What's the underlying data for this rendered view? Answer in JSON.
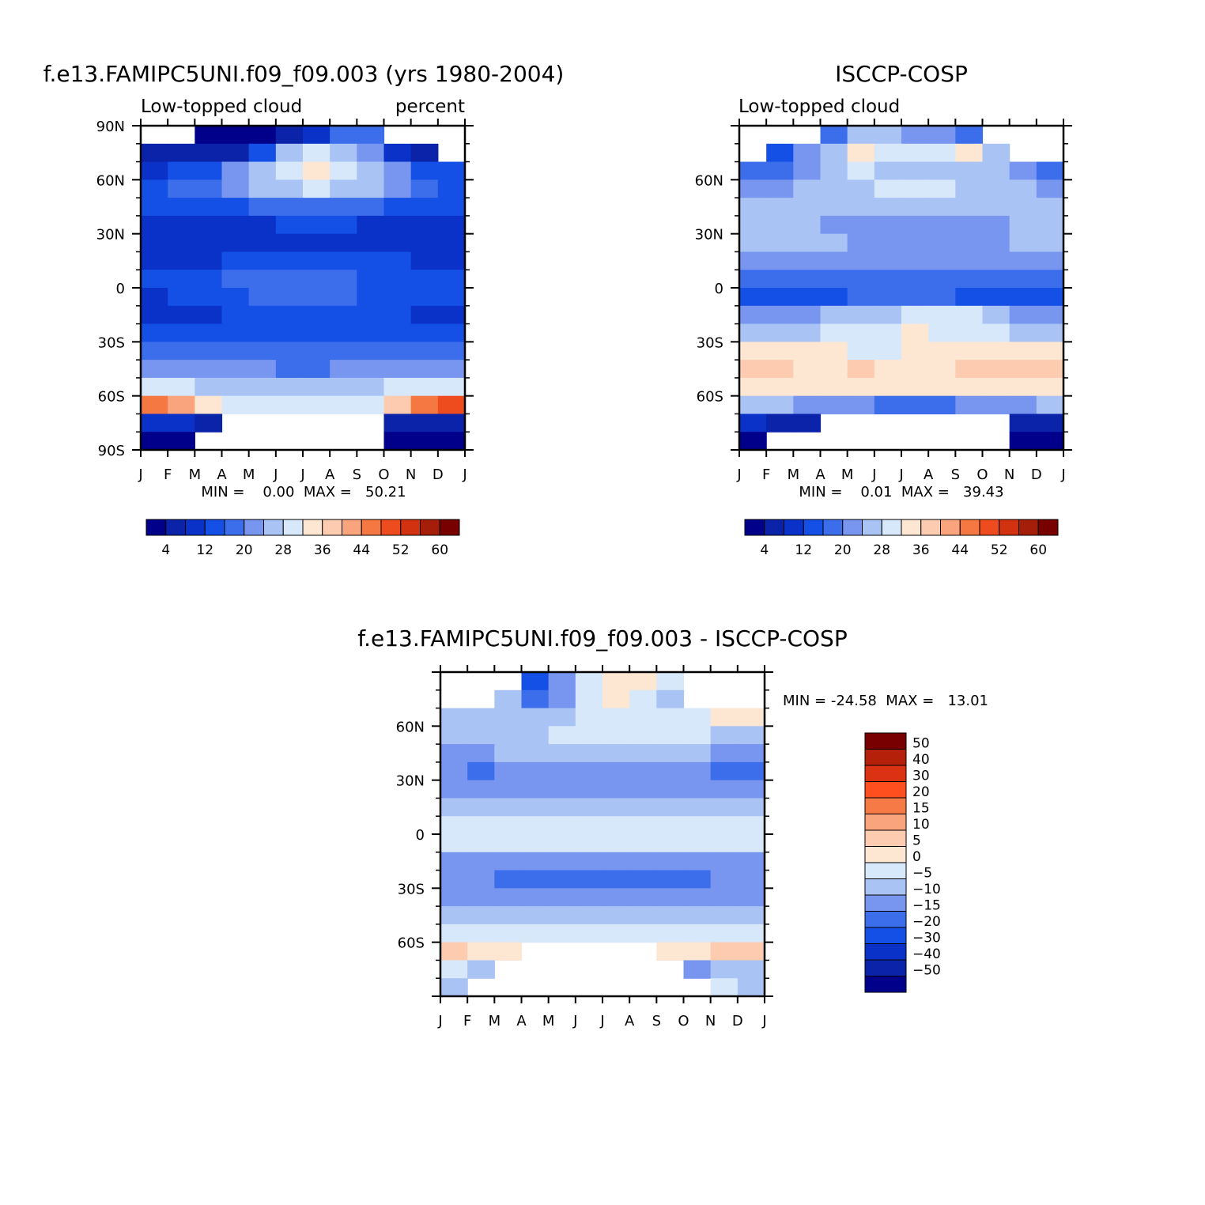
{
  "chart_data": [
    {
      "type": "heatmap",
      "title": "f.e13.FAMIPC5UNI.f09_f09.003 (yrs 1980-2004)",
      "left_label": "Low-topped cloud",
      "right_label": "percent",
      "x_ticks": [
        "J",
        "F",
        "M",
        "A",
        "M",
        "J",
        "J",
        "A",
        "S",
        "O",
        "N",
        "D",
        "J"
      ],
      "y_ticks": [
        "90N",
        "60N",
        "30N",
        "0",
        "30S",
        "60S",
        "90S"
      ],
      "ylim": [
        -90,
        90
      ],
      "min_max_text": "MIN =    0.00  MAX =   50.21",
      "colorbar_labels": [
        "4",
        "12",
        "20",
        "28",
        "36",
        "44",
        "52",
        "60"
      ],
      "colorbar_colors": [
        "#00008b",
        "#0a23a8",
        "#0a32c8",
        "#1450e6",
        "#3c6eeb",
        "#7896f0",
        "#aac3f5",
        "#d7e8fb",
        "#fde6d2",
        "#fccbb0",
        "#f9a47c",
        "#f57842",
        "#ee4c1e",
        "#d2320f",
        "#a51e0a",
        "#780000"
      ],
      "latitudes": [
        85,
        75,
        65,
        55,
        45,
        35,
        25,
        15,
        5,
        -5,
        -15,
        -25,
        -35,
        -45,
        -55,
        -65,
        -75,
        -85
      ],
      "months": [
        "J",
        "F",
        "M",
        "A",
        "M",
        "J",
        "J",
        "A",
        "S",
        "O",
        "N",
        "D"
      ],
      "z": [
        [
          null,
          null,
          1,
          1,
          3,
          5,
          9,
          19,
          16,
          null,
          null,
          null
        ],
        [
          7,
          7,
          4,
          7,
          13,
          24,
          28,
          26,
          23,
          9,
          5,
          null
        ],
        [
          10,
          12,
          15,
          20,
          24,
          31,
          32,
          30,
          27,
          22,
          14,
          12
        ],
        [
          14,
          16,
          18,
          21,
          24,
          27,
          28,
          27,
          24,
          22,
          18,
          15
        ],
        [
          13,
          13,
          14,
          15,
          16,
          17,
          18,
          17,
          16,
          15,
          14,
          13
        ],
        [
          10,
          10,
          11,
          11,
          11,
          12,
          12,
          12,
          11,
          11,
          11,
          10
        ],
        [
          10,
          10,
          10,
          10,
          9,
          10,
          10,
          9,
          10,
          10,
          10,
          10
        ],
        [
          11,
          11,
          11,
          12,
          13,
          13,
          12,
          12,
          12,
          12,
          11,
          11
        ],
        [
          12,
          13,
          14,
          16,
          17,
          17,
          17,
          16,
          15,
          14,
          13,
          12
        ],
        [
          11,
          12,
          13,
          15,
          17,
          17,
          17,
          17,
          15,
          14,
          13,
          12
        ],
        [
          10,
          10,
          11,
          13,
          14,
          14,
          14,
          13,
          12,
          12,
          11,
          10
        ],
        [
          14,
          14,
          14,
          13,
          13,
          13,
          13,
          13,
          13,
          14,
          14,
          14
        ],
        [
          19,
          19,
          18,
          17,
          17,
          16,
          16,
          17,
          17,
          18,
          19,
          19
        ],
        [
          23,
          23,
          22,
          21,
          20,
          19,
          19,
          20,
          21,
          22,
          23,
          23
        ],
        [
          30,
          29,
          27,
          25,
          24,
          24,
          24,
          25,
          26,
          28,
          30,
          31
        ],
        [
          46,
          41,
          33,
          29,
          28,
          28,
          28,
          29,
          30,
          36,
          44,
          48
        ],
        [
          10,
          8,
          6,
          null,
          null,
          null,
          null,
          null,
          null,
          4,
          5,
          7
        ],
        [
          3,
          2,
          null,
          null,
          null,
          null,
          null,
          null,
          null,
          1,
          1,
          1
        ]
      ]
    },
    {
      "type": "heatmap",
      "title": "ISCCP-COSP",
      "left_label": "Low-topped cloud",
      "x_ticks": [
        "J",
        "F",
        "M",
        "A",
        "M",
        "J",
        "J",
        "A",
        "S",
        "O",
        "N",
        "D",
        "J"
      ],
      "y_ticks": [
        "60N",
        "30N",
        "0",
        "30S",
        "60S"
      ],
      "ylim": [
        -90,
        90
      ],
      "min_max_text": "MIN =    0.01  MAX =   39.43",
      "colorbar_labels": [
        "4",
        "12",
        "20",
        "28",
        "36",
        "44",
        "52",
        "60"
      ],
      "colorbar_colors": [
        "#00008b",
        "#0a23a8",
        "#0a32c8",
        "#1450e6",
        "#3c6eeb",
        "#7896f0",
        "#aac3f5",
        "#d7e8fb",
        "#fde6d2",
        "#fccbb0",
        "#f9a47c",
        "#f57842",
        "#ee4c1e",
        "#d2320f",
        "#a51e0a",
        "#780000"
      ],
      "latitudes": [
        85,
        75,
        65,
        55,
        45,
        35,
        25,
        15,
        5,
        -5,
        -15,
        -25,
        -35,
        -45,
        -55,
        -65,
        -75,
        -85
      ],
      "months": [
        "J",
        "F",
        "M",
        "A",
        "M",
        "J",
        "J",
        "A",
        "S",
        "O",
        "N",
        "D"
      ],
      "z": [
        [
          null,
          null,
          null,
          16,
          24,
          27,
          22,
          20,
          18,
          null,
          null,
          null
        ],
        [
          null,
          14,
          20,
          26,
          33,
          31,
          28,
          30,
          32,
          26,
          null,
          null
        ],
        [
          16,
          18,
          22,
          26,
          28,
          27,
          26,
          27,
          26,
          24,
          20,
          18
        ],
        [
          22,
          23,
          24,
          26,
          27,
          28,
          29,
          29,
          27,
          26,
          24,
          22
        ],
        [
          25,
          25,
          24,
          24,
          25,
          25,
          25,
          25,
          25,
          24,
          24,
          25
        ],
        [
          24,
          24,
          24,
          23,
          23,
          23,
          23,
          23,
          23,
          23,
          24,
          24
        ],
        [
          26,
          26,
          25,
          24,
          23,
          23,
          23,
          22,
          22,
          23,
          25,
          26
        ],
        [
          22,
          22,
          21,
          21,
          20,
          20,
          20,
          20,
          20,
          21,
          22,
          22
        ],
        [
          16,
          16,
          17,
          17,
          17,
          16,
          16,
          16,
          16,
          17,
          17,
          16
        ],
        [
          14,
          14,
          15,
          15,
          16,
          16,
          16,
          16,
          15,
          15,
          14,
          14
        ],
        [
          22,
          22,
          23,
          24,
          26,
          27,
          29,
          30,
          28,
          25,
          23,
          22
        ],
        [
          26,
          26,
          27,
          28,
          30,
          31,
          32,
          31,
          30,
          28,
          27,
          26
        ],
        [
          32,
          32,
          32,
          32,
          31,
          31,
          32,
          32,
          32,
          32,
          33,
          32
        ],
        [
          36,
          36,
          35,
          35,
          36,
          35,
          34,
          35,
          36,
          36,
          37,
          36
        ],
        [
          34,
          34,
          34,
          33,
          33,
          32,
          32,
          32,
          33,
          34,
          35,
          34
        ],
        [
          25,
          24,
          22,
          22,
          20,
          18,
          18,
          18,
          20,
          22,
          23,
          24
        ],
        [
          8,
          6,
          5,
          null,
          null,
          null,
          null,
          null,
          null,
          null,
          4,
          6
        ],
        [
          2,
          null,
          null,
          null,
          null,
          null,
          null,
          null,
          null,
          null,
          1,
          1
        ]
      ]
    },
    {
      "type": "heatmap",
      "title": "f.e13.FAMIPC5UNI.f09_f09.003 - ISCCP-COSP",
      "x_ticks": [
        "J",
        "F",
        "M",
        "A",
        "M",
        "J",
        "J",
        "A",
        "S",
        "O",
        "N",
        "D",
        "J"
      ],
      "y_ticks": [
        "60N",
        "30N",
        "0",
        "30S",
        "60S"
      ],
      "ylim": [
        -90,
        90
      ],
      "min_max_text": "MIN = -24.58  MAX =   13.01",
      "colorbar_labels": [
        "50",
        "40",
        "30",
        "20",
        "15",
        "10",
        "5",
        "0",
        "-5",
        "-10",
        "-15",
        "-20",
        "-30",
        "-40",
        "-50"
      ],
      "colorbar_colors": [
        "#780000",
        "#b4200a",
        "#dc3214",
        "#ff4f1e",
        "#f57a46",
        "#f9a47c",
        "#fccbb0",
        "#fde6d2",
        "#d7e8fb",
        "#aac3f5",
        "#7896f0",
        "#3c6eeb",
        "#1450e6",
        "#0a32c8",
        "#0a23a8",
        "#00008b"
      ],
      "latitudes": [
        85,
        75,
        65,
        55,
        45,
        35,
        25,
        15,
        5,
        -5,
        -15,
        -25,
        -35,
        -45,
        -55,
        -65,
        -75,
        -85
      ],
      "months": [
        "J",
        "F",
        "M",
        "A",
        "M",
        "J",
        "J",
        "A",
        "S",
        "O",
        "N",
        "D"
      ],
      "z": [
        [
          null,
          null,
          null,
          -22,
          -14,
          -4,
          2,
          3,
          -2,
          null,
          null,
          null
        ],
        [
          null,
          null,
          -10,
          -18,
          -12,
          -4,
          1,
          -2,
          -6,
          null,
          null,
          null
        ],
        [
          -6,
          -6,
          -8,
          -10,
          -6,
          -1,
          -2,
          -1,
          -3,
          -4,
          2,
          2
        ],
        [
          -8,
          -7,
          -7,
          -6,
          -4,
          -2,
          -2,
          -3,
          -4,
          -5,
          -6,
          -7
        ],
        [
          -11,
          -11,
          -10,
          -10,
          -9,
          -9,
          -8,
          -9,
          -9,
          -10,
          -11,
          -11
        ],
        [
          -15,
          -16,
          -15,
          -14,
          -13,
          -13,
          -13,
          -13,
          -13,
          -14,
          -16,
          -16
        ],
        [
          -13,
          -13,
          -12,
          -11,
          -11,
          -11,
          -11,
          -12,
          -12,
          -12,
          -13,
          -13
        ],
        [
          -9,
          -9,
          -8,
          -8,
          -8,
          -7,
          -7,
          -7,
          -8,
          -8,
          -9,
          -9
        ],
        [
          -3,
          -3,
          -3,
          -2,
          -2,
          -2,
          -2,
          -2,
          -2,
          -3,
          -3,
          -3
        ],
        [
          -5,
          -5,
          -5,
          -4,
          -4,
          -3,
          -3,
          -4,
          -4,
          -4,
          -5,
          -5
        ],
        [
          -12,
          -13,
          -12,
          -12,
          -13,
          -13,
          -13,
          -13,
          -13,
          -12,
          -12,
          -12
        ],
        [
          -14,
          -15,
          -16,
          -17,
          -19,
          -20,
          -20,
          -20,
          -18,
          -16,
          -15,
          -14
        ],
        [
          -12,
          -12,
          -13,
          -14,
          -14,
          -15,
          -15,
          -15,
          -14,
          -13,
          -12,
          -12
        ],
        [
          -9,
          -9,
          -9,
          -9,
          -9,
          -10,
          -10,
          -10,
          -9,
          -9,
          -9,
          -9
        ],
        [
          -4,
          -4,
          -3,
          -3,
          -2,
          -2,
          -2,
          -2,
          -2,
          -3,
          -3,
          -3
        ],
        [
          6,
          4,
          1,
          null,
          null,
          null,
          null,
          null,
          1,
          3,
          6,
          8
        ],
        [
          -5,
          -6,
          null,
          null,
          null,
          null,
          null,
          null,
          null,
          -14,
          -8,
          -6
        ],
        [
          -6,
          null,
          null,
          null,
          null,
          null,
          null,
          null,
          null,
          null,
          -5,
          -6
        ]
      ]
    }
  ]
}
